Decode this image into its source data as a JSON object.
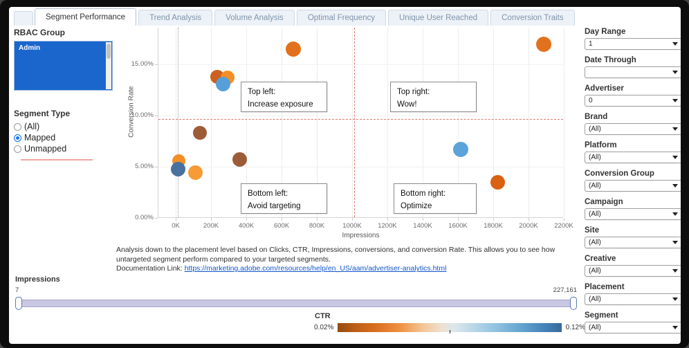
{
  "tabs": {
    "items": [
      {
        "label": "Segment Performance",
        "active": true
      },
      {
        "label": "Trend Analysis",
        "active": false
      },
      {
        "label": "Volume Analysis",
        "active": false
      },
      {
        "label": "Optimal Frequency",
        "active": false
      },
      {
        "label": "Unique User Reached",
        "active": false
      },
      {
        "label": "Conversion Traits",
        "active": false
      }
    ]
  },
  "left_panel": {
    "rbac": {
      "title": "RBAC Group",
      "selected_item": "Admin"
    },
    "segment_type": {
      "title": "Segment Type",
      "options": [
        {
          "label": "(All)",
          "selected": false
        },
        {
          "label": "Mapped",
          "selected": true
        },
        {
          "label": "Unmapped",
          "selected": false
        }
      ]
    }
  },
  "chart_data": {
    "type": "scatter",
    "xlabel": "Impressions",
    "ylabel": "Conversion Rate",
    "x_unit": "K",
    "xlim": [
      -98,
      2200
    ],
    "ylim": [
      0,
      18.6
    ],
    "x_ticks": [
      {
        "value": 0,
        "label": "0K"
      },
      {
        "value": 200,
        "label": "200K"
      },
      {
        "value": 400,
        "label": "400K"
      },
      {
        "value": 600,
        "label": "600K"
      },
      {
        "value": 800,
        "label": "800K"
      },
      {
        "value": 1000,
        "label": "1000K"
      },
      {
        "value": 1200,
        "label": "1200K"
      },
      {
        "value": 1400,
        "label": "1400K"
      },
      {
        "value": 1600,
        "label": "1600K"
      },
      {
        "value": 1800,
        "label": "1800K"
      },
      {
        "value": 2000,
        "label": "2000K"
      },
      {
        "value": 2200,
        "label": "2200K"
      }
    ],
    "y_ticks": [
      {
        "value": 0,
        "label": "0.00%"
      },
      {
        "value": 5,
        "label": "5.00%"
      },
      {
        "value": 10,
        "label": "10.00%"
      },
      {
        "value": 15,
        "label": "15.00%"
      }
    ],
    "points": [
      {
        "impressions_k": 234,
        "conversion_rate": 13.8,
        "color": "#ce5f1e",
        "r": 10
      },
      {
        "impressions_k": 295,
        "conversion_rate": 13.7,
        "color": "#f38f26",
        "r": 10
      },
      {
        "impressions_k": 269,
        "conversion_rate": 13.1,
        "color": "#55a0d8",
        "r": 10.5
      },
      {
        "impressions_k": 668,
        "conversion_rate": 16.5,
        "color": "#e2711d",
        "r": 11
      },
      {
        "impressions_k": 2086,
        "conversion_rate": 17.0,
        "color": "#e2711d",
        "r": 11
      },
      {
        "impressions_k": 138,
        "conversion_rate": 8.3,
        "color": "#9d5c38",
        "r": 10
      },
      {
        "impressions_k": 18,
        "conversion_rate": 5.6,
        "color": "#f38f26",
        "r": 9.5
      },
      {
        "impressions_k": 12,
        "conversion_rate": 4.8,
        "color": "#48719e",
        "r": 10.5
      },
      {
        "impressions_k": 110,
        "conversion_rate": 4.4,
        "color": "#f89a35",
        "r": 10.5
      },
      {
        "impressions_k": 364,
        "conversion_rate": 5.7,
        "color": "#9d5c38",
        "r": 10.5
      },
      {
        "impressions_k": 1615,
        "conversion_rate": 6.7,
        "color": "#5ba4d9",
        "r": 11
      },
      {
        "impressions_k": 1824,
        "conversion_rate": 3.5,
        "color": "#da6012",
        "r": 10.5
      }
    ],
    "ref_lines": [
      {
        "type": "vline",
        "x_k": 12,
        "style": "gray-dotted"
      },
      {
        "type": "vline",
        "x_k": 1011,
        "style": "red-dashed"
      },
      {
        "type": "hline",
        "y_pct": 9.66,
        "style": "red-dashed"
      }
    ],
    "quadrants": {
      "top_left": {
        "line1": "Top left:",
        "line2": "Increase exposure"
      },
      "top_right": {
        "line1": "Top right:",
        "line2": "Wow!"
      },
      "bottom_left": {
        "line1": "Bottom left:",
        "line2": "Avoid targeting"
      },
      "bottom_right": {
        "line1": "Bottom right:",
        "line2": "Optimize"
      }
    },
    "grid": true,
    "legend": {
      "title": "CTR",
      "min": "0.02%",
      "max": "0.12%",
      "colors": [
        "#96490e",
        "#e2711d",
        "#e9e4dd",
        "#6fa8d2",
        "#38699c"
      ]
    }
  },
  "description": {
    "body": "Analysis down to the placement level based on Clicks, CTR, Impressions, conversions, and conversion Rate. This allows you to see how untargeted segment perform compared to your targeted segments.",
    "link_prefix": "Documentation Link: ",
    "link_text": "https://marketing.adobe.com/resources/help/en_US/aam/advertiser-analytics.html"
  },
  "impressions_slider": {
    "label": "Impressions",
    "min": "7",
    "max": "227,161"
  },
  "ctr_legend": {
    "title": "CTR",
    "min": "0.02%",
    "max": "0.12%"
  },
  "filters": {
    "items": [
      {
        "label": "Day Range",
        "value": "1"
      },
      {
        "label": "Date Through",
        "value": ""
      },
      {
        "label": "Advertiser",
        "value": "0"
      },
      {
        "label": "Brand",
        "value": "(All)"
      },
      {
        "label": "Platform",
        "value": "(All)"
      },
      {
        "label": "Conversion Group",
        "value": "(All)"
      },
      {
        "label": "Campaign",
        "value": "(All)"
      },
      {
        "label": "Site",
        "value": "(All)"
      },
      {
        "label": "Creative",
        "value": "(All)"
      },
      {
        "label": "Placement",
        "value": "(All)"
      },
      {
        "label": "Segment",
        "value": "(All)"
      }
    ]
  }
}
